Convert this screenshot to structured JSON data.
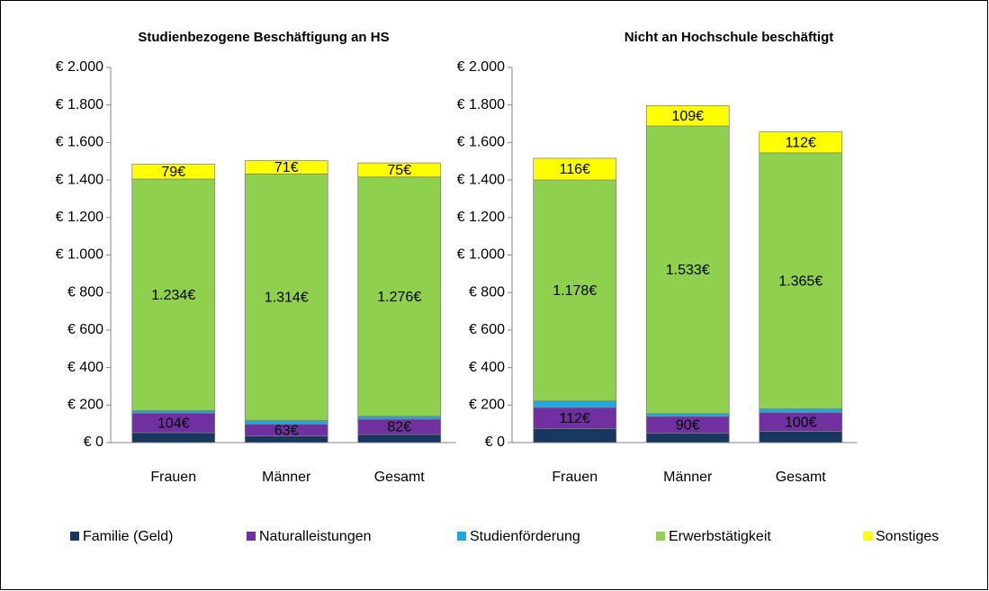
{
  "legend": [
    "Familie (Geld)",
    "Naturalleistungen",
    "Studienförderung",
    "Erwerbstätigkeit",
    "Sonstiges"
  ],
  "chart_data": [
    {
      "type": "bar",
      "stacked": true,
      "title": "Studienbezogene Beschäftigung an HS",
      "categories": [
        "Frauen",
        "Männer",
        "Gesamt"
      ],
      "ylim": [
        0,
        2000
      ],
      "yticks": [
        {
          "value": 0,
          "label": "€ 0"
        },
        {
          "value": 200,
          "label": "€ 200"
        },
        {
          "value": 400,
          "label": "€ 400"
        },
        {
          "value": 600,
          "label": "€ 600"
        },
        {
          "value": 800,
          "label": "€ 800"
        },
        {
          "value": 1000,
          "label": "€ 1.000"
        },
        {
          "value": 1200,
          "label": "€ 1.200"
        },
        {
          "value": 1400,
          "label": "€ 1.400"
        },
        {
          "value": 1600,
          "label": "€ 1.600"
        },
        {
          "value": 1800,
          "label": "€ 1.800"
        },
        {
          "value": 2000,
          "label": "€ 2.000"
        }
      ],
      "series": [
        {
          "color": "#17375e",
          "values": [
            53,
            35,
            43
          ]
        },
        {
          "color": "#7030a0",
          "values": [
            104,
            63,
            82
          ],
          "value_labels": [
            "104€",
            "63€",
            "82€"
          ]
        },
        {
          "color": "#1fa7e0",
          "values": [
            14,
            20,
            15
          ]
        },
        {
          "color": "#8fd14f",
          "values": [
            1234,
            1314,
            1276
          ],
          "value_labels": [
            "1.234€",
            "1.314€",
            "1.276€"
          ]
        },
        {
          "color": "#ffff00",
          "values": [
            79,
            71,
            75
          ],
          "value_labels": [
            "79€",
            "71€",
            "75€"
          ]
        }
      ]
    },
    {
      "type": "bar",
      "stacked": true,
      "title": "Nicht an Hochschule beschäftigt",
      "categories": [
        "Frauen",
        "Männer",
        "Gesamt"
      ],
      "ylim": [
        0,
        2000
      ],
      "yticks": [
        {
          "value": 0,
          "label": "€ 0"
        },
        {
          "value": 200,
          "label": "€ 200"
        },
        {
          "value": 400,
          "label": "€ 400"
        },
        {
          "value": 600,
          "label": "€ 600"
        },
        {
          "value": 800,
          "label": "€ 800"
        },
        {
          "value": 1000,
          "label": "€ 1.000"
        },
        {
          "value": 1200,
          "label": "€ 1.200"
        },
        {
          "value": 1400,
          "label": "€ 1.400"
        },
        {
          "value": 1600,
          "label": "€ 1.600"
        },
        {
          "value": 1800,
          "label": "€ 1.800"
        },
        {
          "value": 2000,
          "label": "€ 2.000"
        }
      ],
      "series": [
        {
          "color": "#17375e",
          "values": [
            75,
            50,
            60
          ]
        },
        {
          "color": "#7030a0",
          "values": [
            112,
            90,
            100
          ],
          "value_labels": [
            "112€",
            "90€",
            "100€"
          ]
        },
        {
          "color": "#1fa7e0",
          "values": [
            35,
            15,
            20
          ]
        },
        {
          "color": "#8fd14f",
          "values": [
            1178,
            1533,
            1365
          ],
          "value_labels": [
            "1.178€",
            "1.533€",
            "1.365€"
          ]
        },
        {
          "color": "#ffff00",
          "values": [
            116,
            109,
            112
          ],
          "value_labels": [
            "116€",
            "109€",
            "112€"
          ]
        }
      ]
    }
  ]
}
